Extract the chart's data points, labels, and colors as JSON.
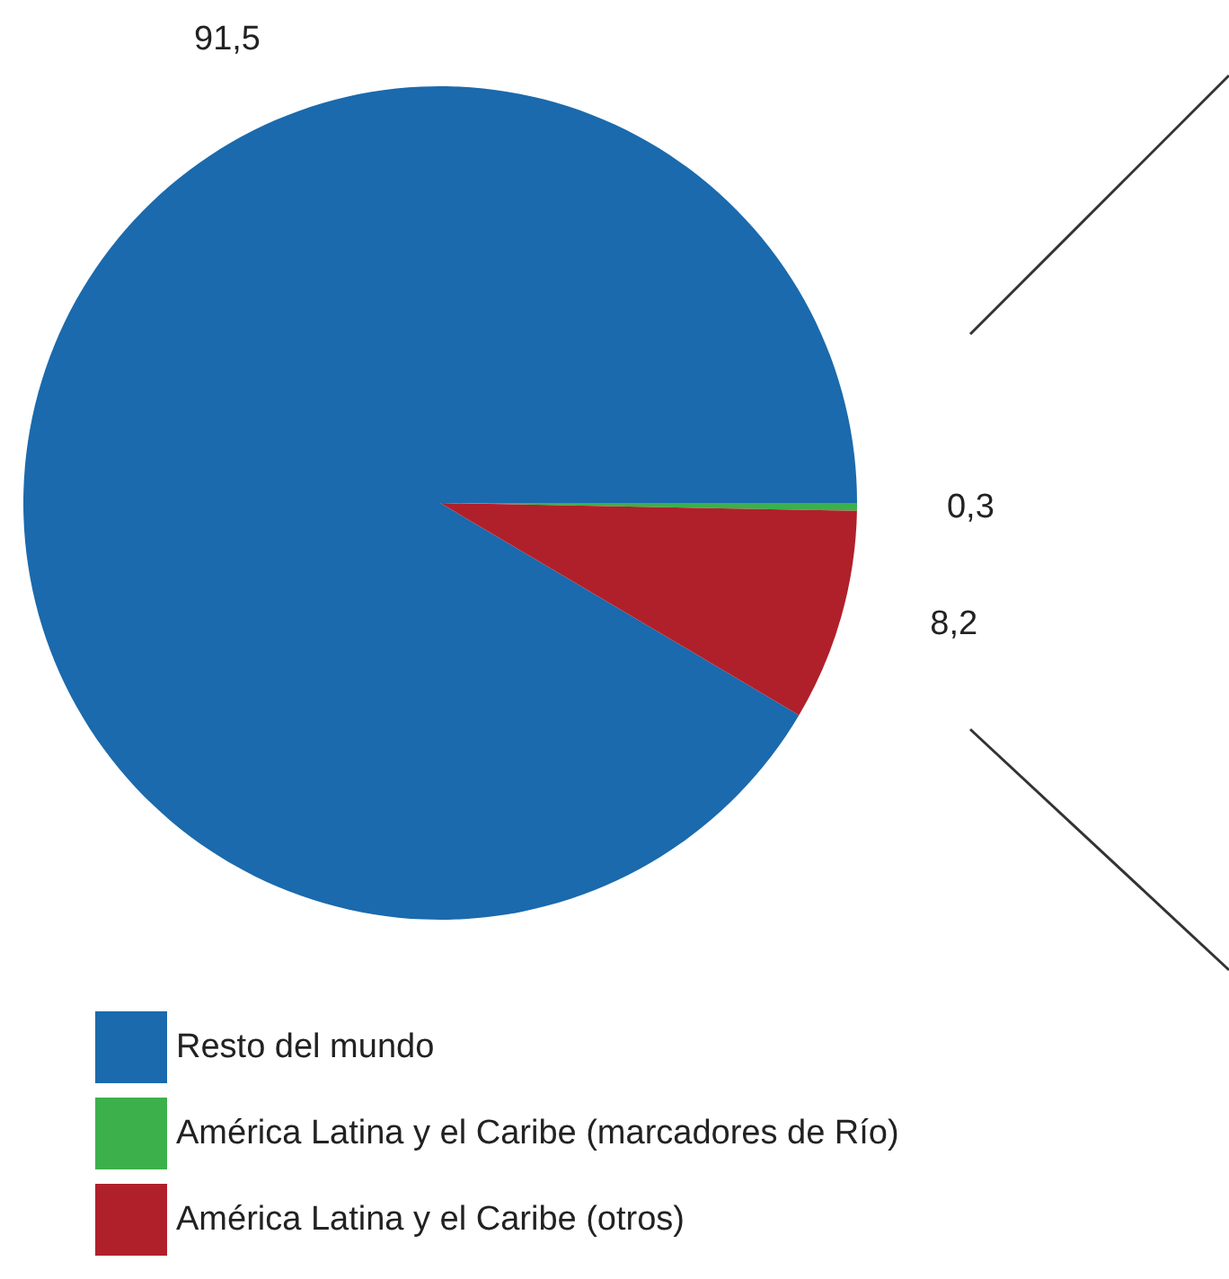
{
  "chart_data": {
    "type": "pie",
    "categories": [
      "Resto del mundo",
      "América Latina y el Caribe (marcadores de Río)",
      "América Latina y el Caribe (otros)"
    ],
    "values": [
      91.5,
      0.3,
      8.2
    ],
    "value_labels": [
      "91,5",
      "0,3",
      "8,2"
    ],
    "colors": [
      "#1a6aad",
      "#3cb04a",
      "#b0202a"
    ],
    "legend": "bottom"
  }
}
